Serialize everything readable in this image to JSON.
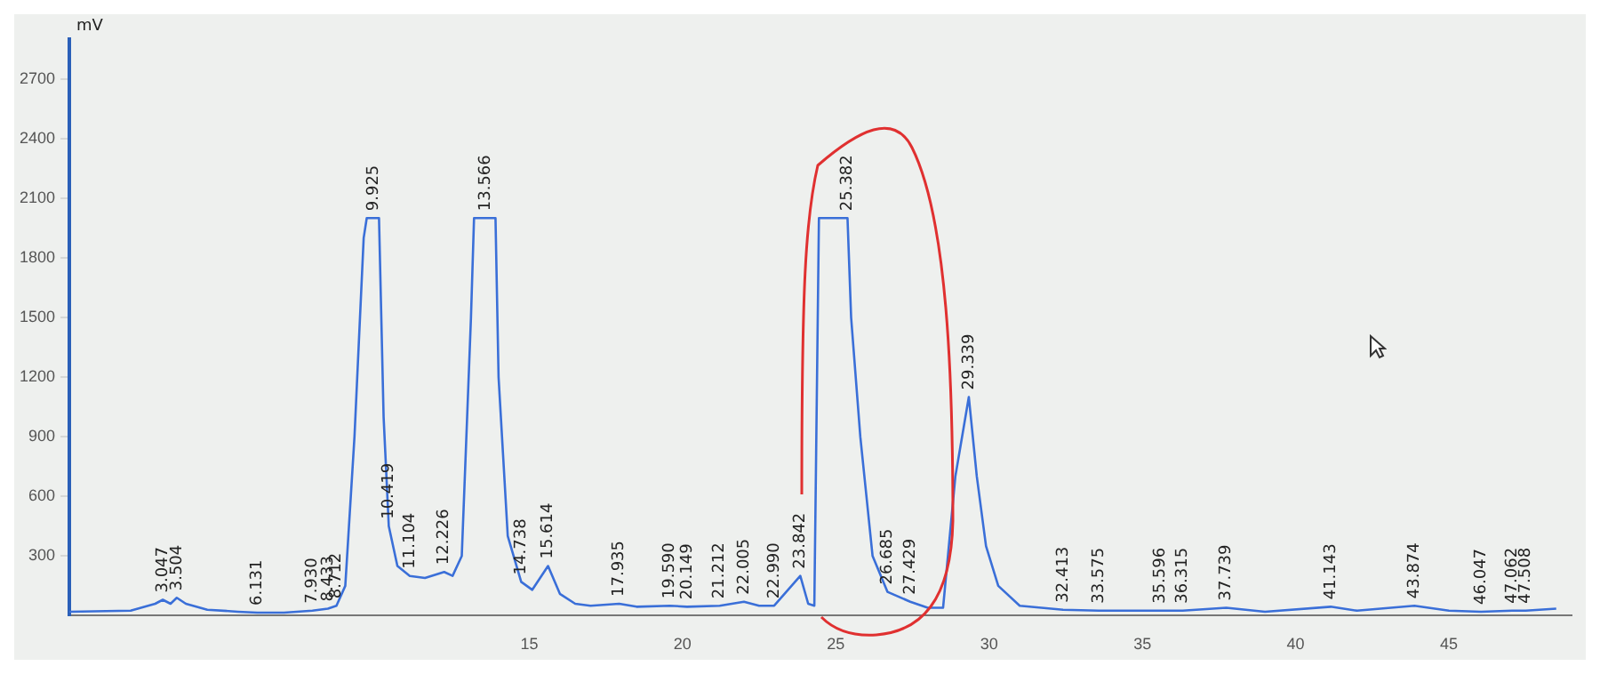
{
  "chart_data": {
    "type": "line",
    "ylabel": "mV",
    "xlim": [
      0,
      49
    ],
    "ylim": [
      0,
      2900
    ],
    "xticks": [
      15,
      20,
      25,
      30,
      35,
      40,
      45
    ],
    "yticks": [
      300,
      600,
      900,
      1200,
      1500,
      1800,
      2100,
      2400,
      2700
    ],
    "grid": false,
    "legend": false,
    "marker": "none",
    "line_style": "solid",
    "series": [
      {
        "color": "#3a6fd8",
        "x": [
          0,
          2,
          2.8,
          3.047,
          3.3,
          3.504,
          3.8,
          4.5,
          5.5,
          6.131,
          7,
          7.93,
          8.433,
          8.712,
          9,
          9.3,
          9.6,
          9.7,
          9.925,
          10.1,
          10.25,
          10.419,
          10.7,
          11.104,
          11.6,
          12.226,
          12.5,
          12.8,
          13.1,
          13.2,
          13.566,
          13.9,
          14,
          14.3,
          14.738,
          15.1,
          15.614,
          16,
          16.5,
          17,
          17.935,
          18.5,
          19.59,
          20.149,
          21.212,
          22.005,
          22.5,
          22.99,
          23.842,
          24.1,
          24.3,
          24.45,
          25.382,
          25.5,
          25.8,
          26.2,
          26.685,
          27.429,
          28,
          28.5,
          28.9,
          29.339,
          29.6,
          29.9,
          30.3,
          31,
          32.413,
          33.575,
          35.596,
          36.315,
          37.739,
          39,
          41.143,
          42,
          43.874,
          45,
          46.047,
          47.062,
          47.508,
          48.5
        ],
        "values": [
          20,
          25,
          60,
          80,
          60,
          90,
          60,
          30,
          20,
          15,
          15,
          25,
          35,
          50,
          150,
          900,
          1900,
          2000,
          2000,
          2000,
          1000,
          450,
          250,
          200,
          190,
          220,
          200,
          300,
          1500,
          2000,
          2000,
          2000,
          1200,
          400,
          170,
          130,
          250,
          110,
          60,
          50,
          60,
          45,
          50,
          45,
          50,
          70,
          50,
          50,
          200,
          60,
          50,
          2000,
          2000,
          1500,
          900,
          300,
          120,
          70,
          40,
          40,
          700,
          1100,
          700,
          350,
          150,
          50,
          30,
          25,
          25,
          25,
          40,
          20,
          45,
          25,
          50,
          25,
          20,
          25,
          25,
          35
        ]
      }
    ],
    "annotations": [
      {
        "text": "3.047",
        "x": 3.047,
        "y": 80
      },
      {
        "text": "3.504",
        "x": 3.504,
        "y": 90
      },
      {
        "text": "6.131",
        "x": 6.131,
        "y": 15
      },
      {
        "text": "7.930",
        "x": 7.93,
        "y": 25
      },
      {
        "text": "8.433",
        "x": 8.433,
        "y": 35
      },
      {
        "text": "8.712",
        "x": 8.712,
        "y": 50
      },
      {
        "text": "9.925",
        "x": 9.925,
        "y": 2000
      },
      {
        "text": "10.419",
        "x": 10.419,
        "y": 450
      },
      {
        "text": "11.104",
        "x": 11.104,
        "y": 200
      },
      {
        "text": "12.226",
        "x": 12.226,
        "y": 220
      },
      {
        "text": "13.566",
        "x": 13.566,
        "y": 2000
      },
      {
        "text": "14.738",
        "x": 14.738,
        "y": 170
      },
      {
        "text": "15.614",
        "x": 15.614,
        "y": 250
      },
      {
        "text": "17.935",
        "x": 17.935,
        "y": 60
      },
      {
        "text": "19.590",
        "x": 19.59,
        "y": 50
      },
      {
        "text": "20.149",
        "x": 20.149,
        "y": 45
      },
      {
        "text": "21.212",
        "x": 21.212,
        "y": 50
      },
      {
        "text": "22.005",
        "x": 22.005,
        "y": 70
      },
      {
        "text": "22.990",
        "x": 22.99,
        "y": 50
      },
      {
        "text": "23.842",
        "x": 23.842,
        "y": 200
      },
      {
        "text": "25.382",
        "x": 25.382,
        "y": 2000
      },
      {
        "text": "26.685",
        "x": 26.685,
        "y": 120
      },
      {
        "text": "27.429",
        "x": 27.429,
        "y": 70
      },
      {
        "text": "29.339",
        "x": 29.339,
        "y": 1100
      },
      {
        "text": "32.413",
        "x": 32.413,
        "y": 30
      },
      {
        "text": "33.575",
        "x": 33.575,
        "y": 25
      },
      {
        "text": "35.596",
        "x": 35.596,
        "y": 25
      },
      {
        "text": "36.315",
        "x": 36.315,
        "y": 25
      },
      {
        "text": "37.739",
        "x": 37.739,
        "y": 40
      },
      {
        "text": "41.143",
        "x": 41.143,
        "y": 45
      },
      {
        "text": "43.874",
        "x": 43.874,
        "y": 50
      },
      {
        "text": "46.047",
        "x": 46.047,
        "y": 20
      },
      {
        "text": "47.062",
        "x": 47.062,
        "y": 25
      },
      {
        "text": "47.508",
        "x": 47.508,
        "y": 25
      }
    ]
  }
}
